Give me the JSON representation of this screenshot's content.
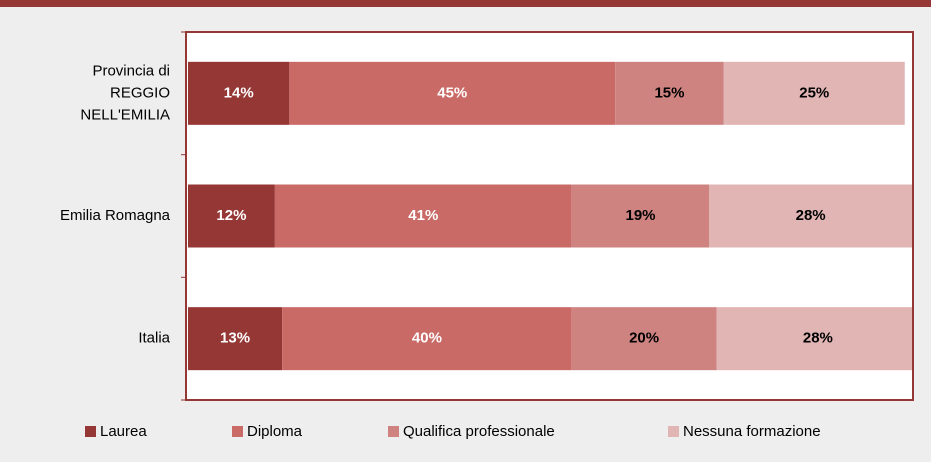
{
  "chart_data": {
    "type": "stacked_bar_horizontal",
    "categories": [
      "Provincia di\nREGGIO\nNELL'EMILIA",
      "Emilia Romagna",
      "Italia"
    ],
    "series": [
      {
        "name": "Laurea",
        "color": "#953735",
        "label_color": "#ffffff",
        "values": [
          14,
          12,
          13
        ],
        "value_labels": [
          "14%",
          "12%",
          "13%"
        ]
      },
      {
        "name": "Diploma",
        "color": "#c96a66",
        "label_color": "#ffffff",
        "values": [
          45,
          41,
          40
        ],
        "value_labels": [
          "45%",
          "41%",
          "40%"
        ]
      },
      {
        "name": "Qualifica professionale",
        "color": "#ce8381",
        "label_color": "#000000",
        "values": [
          15,
          19,
          20
        ],
        "value_labels": [
          "15%",
          "19%",
          "20%"
        ]
      },
      {
        "name": "Nessuna formazione",
        "color": "#e0b5b4",
        "label_color": "#000000",
        "values": [
          25,
          28,
          28
        ],
        "value_labels": [
          "25%",
          "28%",
          "28%"
        ]
      }
    ],
    "xlim": [
      0,
      100
    ],
    "legend": "bottom"
  }
}
